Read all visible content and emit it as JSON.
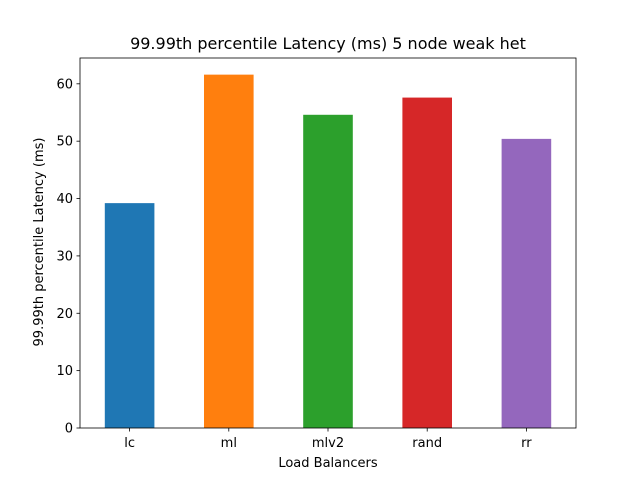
{
  "chart_data": {
    "type": "bar",
    "title": "99.99th percentile Latency (ms) 5 node weak het",
    "xlabel": "Load Balancers",
    "ylabel": "99.99th percentile Latency (ms)",
    "categories": [
      "lc",
      "ml",
      "mlv2",
      "rand",
      "rr"
    ],
    "values": [
      39.2,
      61.6,
      54.6,
      57.6,
      50.4
    ],
    "colors": [
      "#1f77b4",
      "#ff7f0e",
      "#2ca02c",
      "#d62728",
      "#9467bd"
    ],
    "ylim": [
      0,
      64.5
    ],
    "yticks": [
      0,
      10,
      20,
      30,
      40,
      50,
      60
    ],
    "grid": false,
    "legend": "none"
  }
}
